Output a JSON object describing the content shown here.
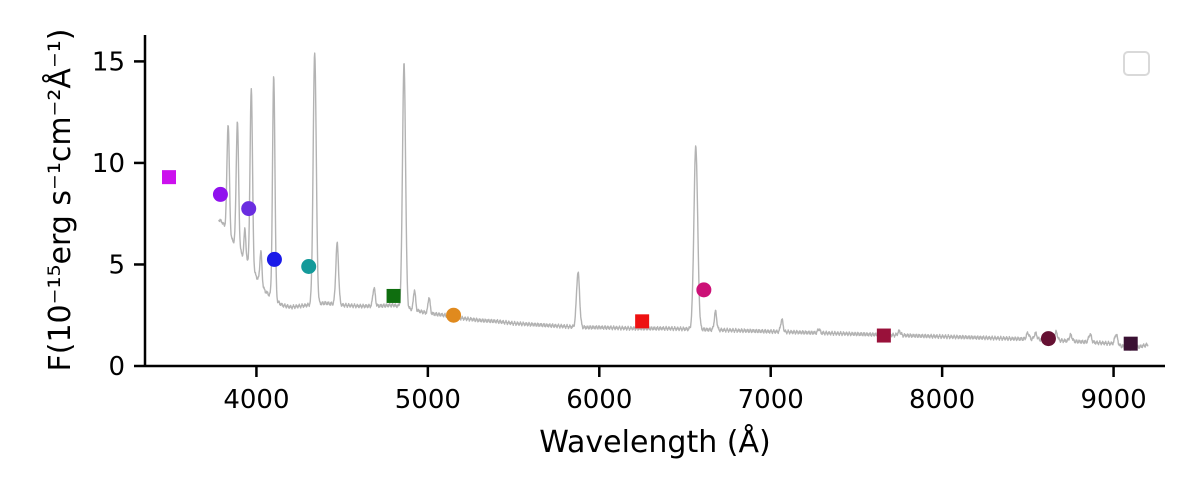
{
  "chart_data": {
    "type": "scatter",
    "xlabel": "Wavelength (Å)",
    "ylabel": "F(10⁻¹⁵erg s⁻¹cm⁻²Å⁻¹)",
    "xlim": [
      3350,
      9300
    ],
    "ylim": [
      0,
      16.3
    ],
    "xticks": [
      4000,
      5000,
      6000,
      7000,
      8000,
      9000
    ],
    "yticks": [
      0,
      5,
      10,
      15
    ],
    "grid": false,
    "legend": "top-right",
    "spectrum": {
      "color": "#b3b3b3",
      "continuum": [
        [
          3780,
          7.2
        ],
        [
          3800,
          7.1
        ],
        [
          3850,
          6.3
        ],
        [
          3900,
          5.7
        ],
        [
          3950,
          5.1
        ],
        [
          4000,
          4.4
        ],
        [
          4050,
          3.7
        ],
        [
          4100,
          3.3
        ],
        [
          4150,
          3.0
        ],
        [
          4200,
          2.9
        ],
        [
          4300,
          3.0
        ],
        [
          4400,
          3.1
        ],
        [
          4500,
          3.0
        ],
        [
          4600,
          2.95
        ],
        [
          4700,
          2.95
        ],
        [
          4800,
          3.0
        ],
        [
          4900,
          2.8
        ],
        [
          5000,
          2.6
        ],
        [
          5100,
          2.5
        ],
        [
          5200,
          2.35
        ],
        [
          5300,
          2.25
        ],
        [
          5400,
          2.2
        ],
        [
          5500,
          2.1
        ],
        [
          5600,
          2.05
        ],
        [
          5700,
          2.0
        ],
        [
          5800,
          1.95
        ],
        [
          5900,
          1.9
        ],
        [
          6000,
          1.9
        ],
        [
          6200,
          1.85
        ],
        [
          6400,
          1.85
        ],
        [
          6600,
          1.8
        ],
        [
          6800,
          1.75
        ],
        [
          7000,
          1.7
        ],
        [
          7200,
          1.65
        ],
        [
          7400,
          1.6
        ],
        [
          7600,
          1.55
        ],
        [
          7800,
          1.5
        ],
        [
          8000,
          1.45
        ],
        [
          8200,
          1.4
        ],
        [
          8400,
          1.35
        ],
        [
          8600,
          1.3
        ],
        [
          8800,
          1.2
        ],
        [
          9000,
          1.1
        ],
        [
          9100,
          0.85
        ],
        [
          9200,
          1.05
        ]
      ],
      "lines": [
        [
          3835,
          5.4,
          7
        ],
        [
          3889,
          6.2,
          7
        ],
        [
          3933,
          1.5,
          5
        ],
        [
          3970,
          8.9,
          7
        ],
        [
          4026,
          1.6,
          6
        ],
        [
          4101,
          11.0,
          7
        ],
        [
          4340,
          12.4,
          9
        ],
        [
          4471,
          3.0,
          8
        ],
        [
          4686,
          0.9,
          7
        ],
        [
          4861,
          12.0,
          9
        ],
        [
          4922,
          1.0,
          6
        ],
        [
          5007,
          0.8,
          6
        ],
        [
          5876,
          2.7,
          9
        ],
        [
          6563,
          9.0,
          11
        ],
        [
          6678,
          0.9,
          7
        ],
        [
          7065,
          0.6,
          7
        ],
        [
          7281,
          0.2,
          6
        ],
        [
          7750,
          0.2,
          8
        ],
        [
          8500,
          0.3,
          8
        ],
        [
          8545,
          0.3,
          8
        ],
        [
          8665,
          0.4,
          8
        ],
        [
          8750,
          0.3,
          8
        ],
        [
          8863,
          0.4,
          8
        ],
        [
          9015,
          0.5,
          8
        ]
      ]
    },
    "markers": [
      {
        "x": 3490,
        "y": 9.3,
        "shape": "square",
        "color": "#cc11ee"
      },
      {
        "x": 3790,
        "y": 8.45,
        "shape": "circle",
        "color": "#9011ee"
      },
      {
        "x": 3955,
        "y": 7.75,
        "shape": "circle",
        "color": "#6a2de0"
      },
      {
        "x": 4105,
        "y": 5.25,
        "shape": "circle",
        "color": "#1a1ae8"
      },
      {
        "x": 4305,
        "y": 4.9,
        "shape": "circle",
        "color": "#149a9a"
      },
      {
        "x": 4800,
        "y": 3.45,
        "shape": "square",
        "color": "#0f6e0f"
      },
      {
        "x": 5150,
        "y": 2.5,
        "shape": "circle",
        "color": "#e08a1e"
      },
      {
        "x": 6250,
        "y": 2.2,
        "shape": "square",
        "color": "#ee1111"
      },
      {
        "x": 6610,
        "y": 3.75,
        "shape": "circle",
        "color": "#cc1177"
      },
      {
        "x": 7660,
        "y": 1.5,
        "shape": "square",
        "color": "#99113a"
      },
      {
        "x": 8620,
        "y": 1.35,
        "shape": "circle",
        "color": "#661133"
      },
      {
        "x": 9100,
        "y": 1.1,
        "shape": "square",
        "color": "#3a1133"
      }
    ]
  }
}
